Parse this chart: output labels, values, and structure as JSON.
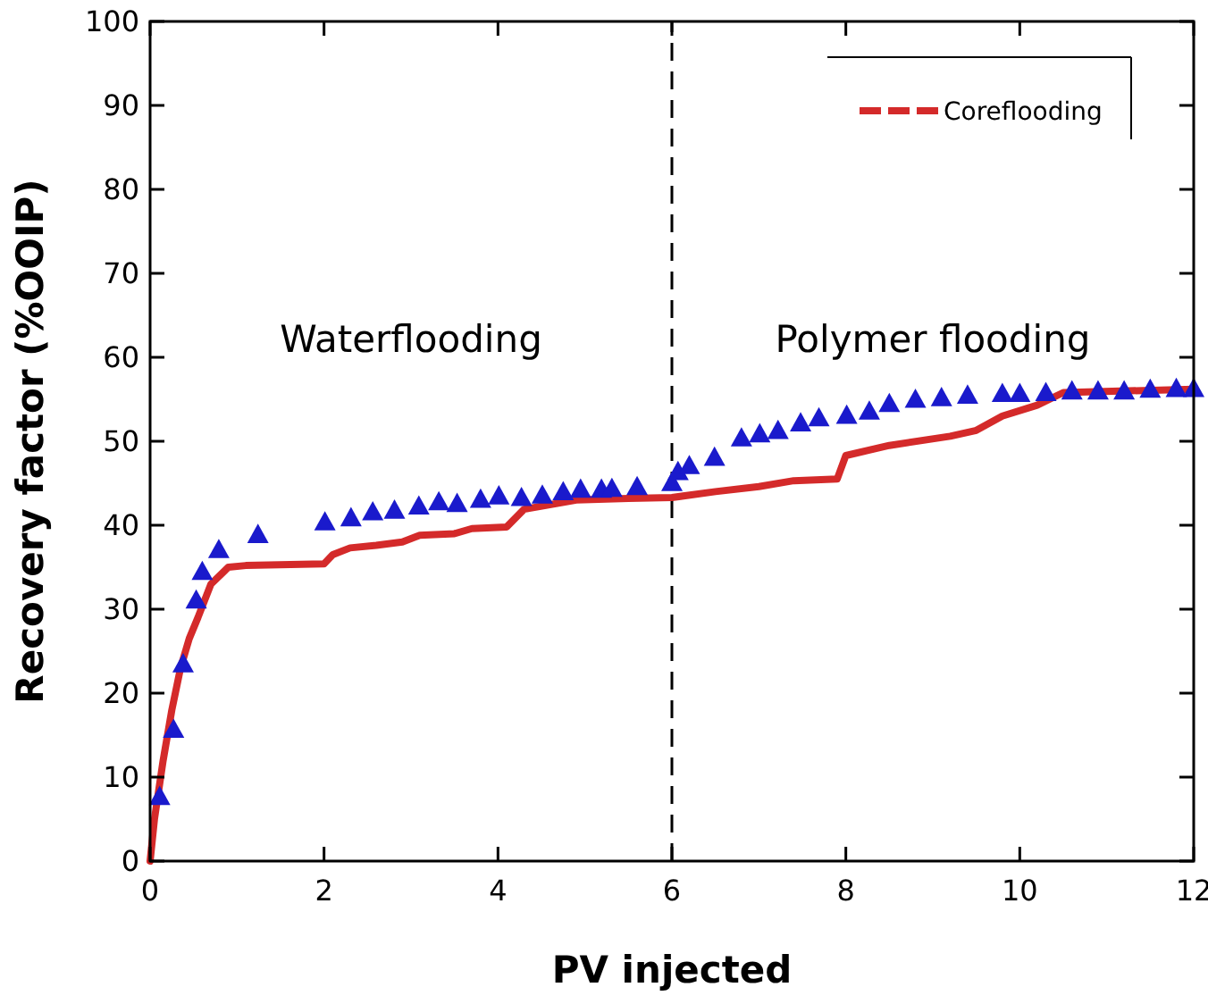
{
  "chart_data": {
    "type": "line",
    "xlabel": "PV injected",
    "ylabel": "Recovery factor (%OOIP)",
    "xlim": [
      0,
      12
    ],
    "ylim": [
      0,
      100
    ],
    "xticks": [
      0,
      2,
      4,
      6,
      8,
      10,
      12
    ],
    "yticks": [
      0,
      10,
      20,
      30,
      40,
      50,
      60,
      70,
      80,
      90,
      100
    ],
    "grid": false,
    "legend": "top right",
    "series": [
      {
        "name": "Coreflooding",
        "color": "#d42a2a",
        "line_style": "solid",
        "marker": "none",
        "x": [
          0,
          0.05,
          0.15,
          0.25,
          0.35,
          0.45,
          0.55,
          0.7,
          0.9,
          1.1,
          2.0,
          2.1,
          2.3,
          2.6,
          2.9,
          3.1,
          3.5,
          3.7,
          4.1,
          4.3,
          4.9,
          5.5,
          6,
          6.5,
          7,
          7.4,
          7.9,
          8.0,
          8.5,
          9.2,
          9.5,
          9.8,
          10.2,
          10.5,
          12
        ],
        "values": [
          0,
          5,
          12,
          18,
          23,
          26.5,
          29,
          33,
          35,
          35.2,
          35.4,
          36.5,
          37.3,
          37.6,
          38,
          38.8,
          39,
          39.6,
          39.8,
          41.9,
          43,
          43.2,
          43.3,
          44,
          44.6,
          45.3,
          45.5,
          48.3,
          49.5,
          50.6,
          51.3,
          53,
          54.3,
          55.8,
          56.2
        ]
      },
      {
        "type": "scatter",
        "color": "#1a1acc",
        "marker": "triangle",
        "x": [
          0.11,
          0.27,
          0.38,
          0.53,
          0.6,
          0.79,
          1.24,
          2.01,
          2.31,
          2.56,
          2.81,
          3.09,
          3.32,
          3.53,
          3.8,
          4.01,
          4.27,
          4.51,
          4.75,
          4.95,
          5.19,
          5.31,
          5.6,
          6.0,
          6.07,
          6.2,
          6.49,
          6.8,
          7.01,
          7.22,
          7.48,
          7.69,
          8.01,
          8.27,
          8.5,
          8.8,
          9.1,
          9.4,
          9.8,
          10.0,
          10.3,
          10.6,
          10.9,
          11.2,
          11.5,
          11.8,
          12
        ],
        "values": [
          7.7,
          15.7,
          23.5,
          31.1,
          34.5,
          37.1,
          38.9,
          40.4,
          40.9,
          41.6,
          41.8,
          42.3,
          42.8,
          42.6,
          43.1,
          43.5,
          43.3,
          43.6,
          44.0,
          44.3,
          44.3,
          44.4,
          44.6,
          45.1,
          46.4,
          47.1,
          48.1,
          50.4,
          50.9,
          51.3,
          52.2,
          52.8,
          53.1,
          53.6,
          54.5,
          55,
          55.2,
          55.5,
          55.7,
          55.7,
          55.8,
          56,
          56,
          56,
          56.2,
          56.3,
          56.3
        ]
      }
    ],
    "ref_lines": [
      {
        "axis": "x",
        "value": 6,
        "color": "#000000",
        "line_style": "dashed"
      }
    ],
    "annotations": [
      "Waterflooding",
      "Polymer flooding"
    ]
  }
}
